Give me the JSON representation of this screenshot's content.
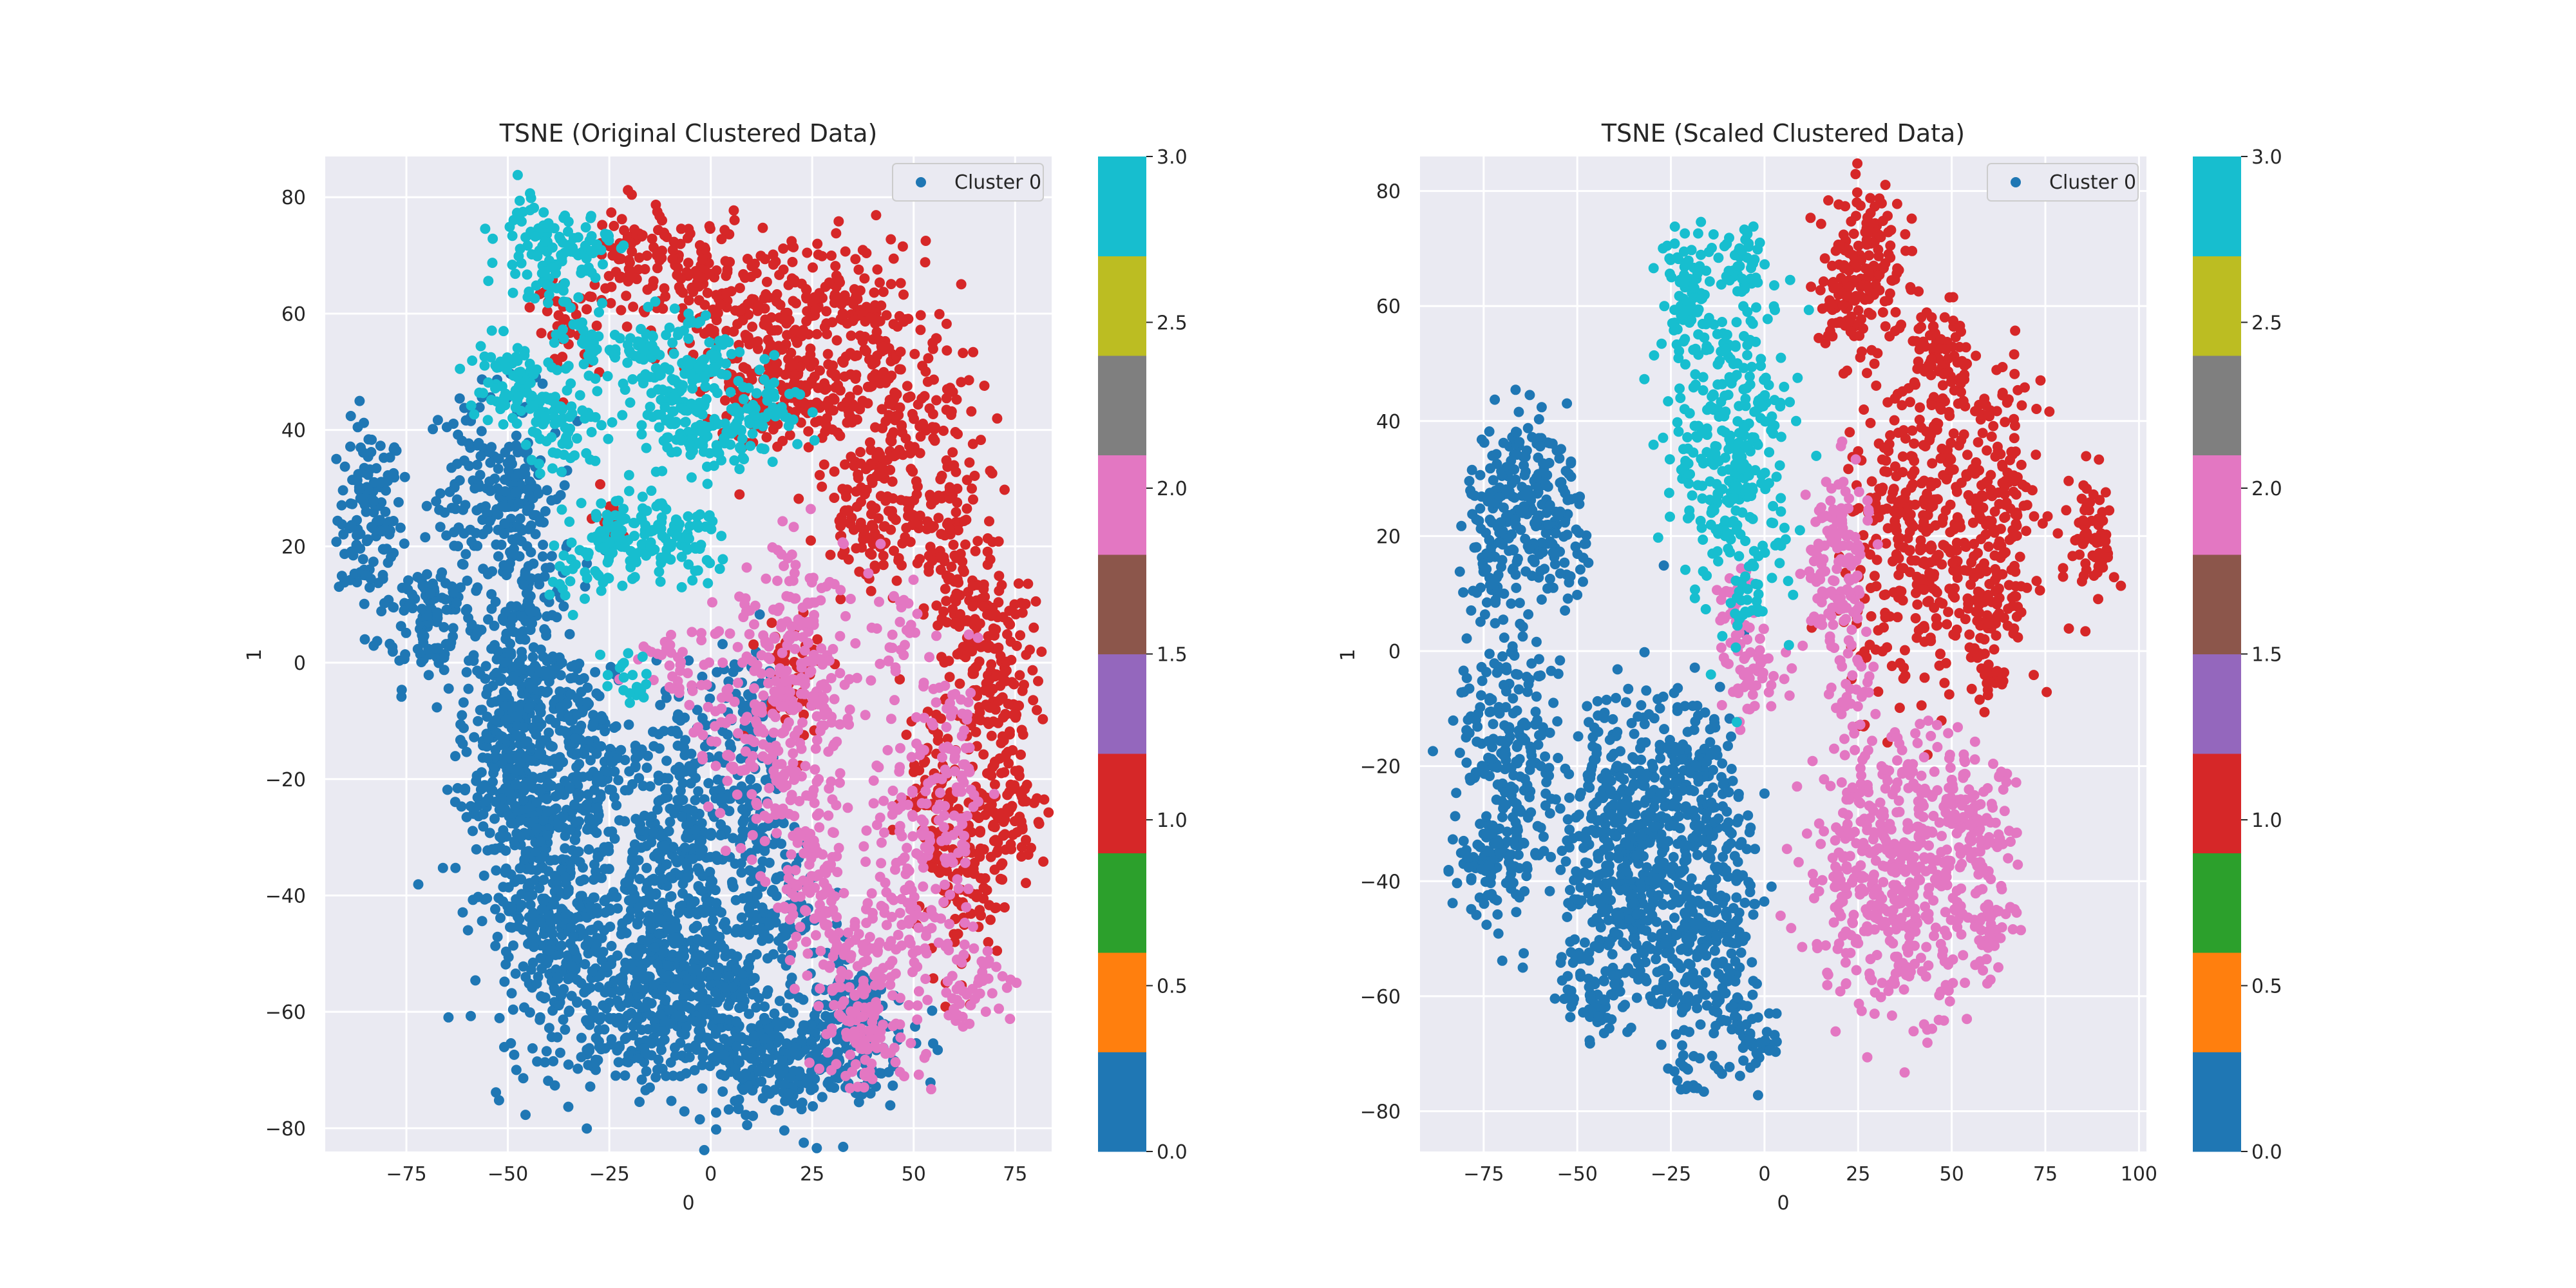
{
  "chart_data": [
    {
      "type": "scatter",
      "title": "TSNE (Original Clustered Data)",
      "xlabel": "0",
      "ylabel": "1",
      "xlim": [
        -95,
        84
      ],
      "ylim": [
        -84,
        87
      ],
      "xticks": [
        -75,
        -50,
        -25,
        0,
        25,
        50,
        75
      ],
      "yticks": [
        -80,
        -60,
        -40,
        -20,
        0,
        20,
        40,
        60,
        80
      ],
      "tick_labels_x": [
        "−75",
        "−50",
        "−25",
        "0",
        "25",
        "50",
        "75"
      ],
      "tick_labels_y": [
        "−80",
        "−60",
        "−40",
        "−20",
        "0",
        "20",
        "40",
        "60",
        "80"
      ],
      "legend": {
        "label": "Cluster 0",
        "position": "top-right"
      },
      "grid": true,
      "series": [
        {
          "color_value": 0.0,
          "color": "#1f77b4",
          "blobs": [
            [
              -84,
              25,
              4,
              8,
              120
            ],
            [
              -70,
              8,
              6,
              6,
              110
            ],
            [
              -58,
              30,
              6,
              8,
              100
            ],
            [
              -48,
              30,
              3,
              6,
              50
            ],
            [
              -45,
              5,
              6,
              18,
              260
            ],
            [
              -50,
              -10,
              6,
              10,
              180
            ],
            [
              -45,
              -25,
              8,
              8,
              160
            ],
            [
              -42,
              -40,
              8,
              12,
              220
            ],
            [
              -35,
              -50,
              6,
              8,
              140
            ],
            [
              -28,
              -20,
              5,
              6,
              90
            ],
            [
              -32,
              -8,
              4,
              5,
              60
            ],
            [
              -18,
              -40,
              6,
              6,
              100
            ],
            [
              -8,
              -25,
              6,
              12,
              170
            ],
            [
              -8,
              -52,
              8,
              6,
              170
            ],
            [
              -20,
              -62,
              10,
              6,
              180
            ],
            [
              0,
              -60,
              8,
              8,
              170
            ],
            [
              12,
              -40,
              8,
              6,
              150
            ],
            [
              25,
              -65,
              12,
              6,
              200
            ],
            [
              18,
              -70,
              8,
              4,
              100
            ],
            [
              8,
              -8,
              5,
              6,
              70
            ],
            [
              10,
              -25,
              5,
              5,
              70
            ],
            [
              35,
              -60,
              5,
              5,
              60
            ]
          ]
        },
        {
          "color_value": 1.0,
          "color": "#d62728",
          "blobs": [
            [
              -5,
              68,
              8,
              5,
              90
            ],
            [
              20,
              62,
              14,
              5,
              170
            ],
            [
              12,
              48,
              8,
              6,
              110
            ],
            [
              25,
              45,
              8,
              6,
              110
            ],
            [
              40,
              55,
              4,
              8,
              80
            ],
            [
              50,
              38,
              8,
              8,
              140
            ],
            [
              40,
              25,
              6,
              6,
              100
            ],
            [
              60,
              20,
              5,
              7,
              80
            ],
            [
              68,
              8,
              6,
              7,
              100
            ],
            [
              70,
              -8,
              5,
              6,
              90
            ],
            [
              70,
              -28,
              6,
              6,
              110
            ],
            [
              60,
              -40,
              5,
              8,
              80
            ],
            [
              -20,
              70,
              5,
              5,
              60
            ],
            [
              -35,
              58,
              4,
              4,
              40
            ],
            [
              20,
              -2,
              5,
              6,
              50
            ],
            [
              55,
              -20,
              4,
              8,
              60
            ],
            [
              -25,
              25,
              2,
              2,
              15
            ]
          ]
        },
        {
          "color_value": 2.0,
          "color": "#e377c2",
          "blobs": [
            [
              22,
              10,
              8,
              6,
              90
            ],
            [
              25,
              -5,
              6,
              4,
              60
            ],
            [
              10,
              -10,
              8,
              8,
              120
            ],
            [
              20,
              -20,
              6,
              6,
              80
            ],
            [
              25,
              -40,
              5,
              8,
              90
            ],
            [
              35,
              -55,
              5,
              8,
              90
            ],
            [
              40,
              -65,
              6,
              4,
              70
            ],
            [
              50,
              -35,
              6,
              12,
              150
            ],
            [
              60,
              -20,
              4,
              10,
              80
            ],
            [
              65,
              -55,
              5,
              4,
              50
            ],
            [
              -10,
              0,
              4,
              3,
              30
            ],
            [
              45,
              5,
              4,
              4,
              30
            ]
          ]
        },
        {
          "color_value": 3.0,
          "color": "#17becf",
          "blobs": [
            [
              -42,
              72,
              5,
              5,
              80
            ],
            [
              -32,
              72,
              4,
              3,
              40
            ],
            [
              -50,
              48,
              6,
              4,
              80
            ],
            [
              -35,
              40,
              5,
              5,
              70
            ],
            [
              -30,
              55,
              4,
              3,
              40
            ],
            [
              -15,
              55,
              5,
              3,
              50
            ],
            [
              -10,
              45,
              5,
              5,
              70
            ],
            [
              -5,
              40,
              5,
              4,
              60
            ],
            [
              0,
              52,
              3,
              3,
              40
            ],
            [
              8,
              40,
              4,
              3,
              40
            ],
            [
              14,
              45,
              5,
              3,
              40
            ],
            [
              -25,
              20,
              4,
              4,
              60
            ],
            [
              -15,
              22,
              5,
              4,
              60
            ],
            [
              -5,
              20,
              4,
              3,
              40
            ],
            [
              -20,
              -2,
              3,
              3,
              20
            ],
            [
              -35,
              15,
              3,
              3,
              20
            ]
          ]
        }
      ]
    },
    {
      "type": "scatter",
      "title": "TSNE (Scaled Clustered Data)",
      "xlabel": "0",
      "ylabel": "1",
      "xlim": [
        -92,
        102
      ],
      "ylim": [
        -87,
        86
      ],
      "xticks": [
        -75,
        -50,
        -25,
        0,
        25,
        50,
        75,
        100
      ],
      "yticks": [
        -80,
        -60,
        -40,
        -20,
        0,
        20,
        40,
        60,
        80
      ],
      "tick_labels_x": [
        "−75",
        "−50",
        "−25",
        "0",
        "25",
        "50",
        "75",
        "100"
      ],
      "tick_labels_y": [
        "−80",
        "−60",
        "−40",
        "−20",
        "0",
        "20",
        "40",
        "60",
        "80"
      ],
      "legend": {
        "label": "Cluster 0",
        "position": "top-right"
      },
      "grid": true,
      "series": [
        {
          "color_value": 0.0,
          "color": "#1f77b4",
          "blobs": [
            [
              -65,
              30,
              6,
              6,
              130
            ],
            [
              -72,
              18,
              4,
              6,
              70
            ],
            [
              -55,
              20,
              4,
              6,
              70
            ],
            [
              -68,
              -20,
              7,
              14,
              260
            ],
            [
              -75,
              -38,
              4,
              4,
              50
            ],
            [
              -45,
              -25,
              4,
              8,
              80
            ],
            [
              -38,
              -40,
              8,
              10,
              200
            ],
            [
              -28,
              -25,
              8,
              10,
              200
            ],
            [
              -15,
              -35,
              6,
              14,
              200
            ],
            [
              -10,
              -55,
              4,
              8,
              80
            ],
            [
              -25,
              -55,
              5,
              6,
              90
            ],
            [
              -45,
              -58,
              5,
              5,
              70
            ],
            [
              -2,
              -68,
              3,
              3,
              30
            ],
            [
              -20,
              -72,
              3,
              3,
              20
            ]
          ]
        },
        {
          "color_value": 1.0,
          "color": "#d62728",
          "blobs": [
            [
              27,
              70,
              5,
              6,
              110
            ],
            [
              22,
              60,
              4,
              6,
              70
            ],
            [
              47,
              50,
              4,
              6,
              80
            ],
            [
              40,
              20,
              10,
              14,
              330
            ],
            [
              62,
              28,
              6,
              10,
              140
            ],
            [
              60,
              8,
              6,
              5,
              80
            ],
            [
              88,
              20,
              3,
              6,
              70
            ],
            [
              60,
              -5,
              3,
              2,
              20
            ]
          ]
        },
        {
          "color_value": 2.0,
          "color": "#e377c2",
          "blobs": [
            [
              20,
              20,
              4,
              6,
              80
            ],
            [
              18,
              8,
              4,
              4,
              60
            ],
            [
              24,
              -8,
              3,
              4,
              30
            ],
            [
              -3,
              -5,
              4,
              4,
              50
            ],
            [
              -8,
              8,
              3,
              3,
              30
            ],
            [
              35,
              -38,
              12,
              12,
              480
            ],
            [
              55,
              -30,
              6,
              6,
              90
            ],
            [
              60,
              -48,
              4,
              4,
              40
            ]
          ]
        },
        {
          "color_value": 3.0,
          "color": "#17becf",
          "blobs": [
            [
              -20,
              62,
              4,
              6,
              80
            ],
            [
              -5,
              67,
              3,
              4,
              40
            ],
            [
              -8,
              35,
              8,
              14,
              330
            ],
            [
              -5,
              8,
              2,
              2,
              15
            ]
          ]
        }
      ]
    }
  ],
  "colorbar": {
    "ticks": [
      0.0,
      0.5,
      1.0,
      1.5,
      2.0,
      2.5,
      3.0
    ],
    "tick_labels": [
      "0.0",
      "0.5",
      "1.0",
      "1.5",
      "2.0",
      "2.5",
      "3.0"
    ],
    "colors": [
      "#1f77b4",
      "#ff7f0e",
      "#2ca02c",
      "#d62728",
      "#9467bd",
      "#8c564b",
      "#e377c2",
      "#7f7f7f",
      "#bcbd22",
      "#17becf"
    ]
  },
  "style": {
    "axes_bg": "#eaeaf2",
    "grid_color": "#ffffff",
    "text_color": "#262626"
  }
}
